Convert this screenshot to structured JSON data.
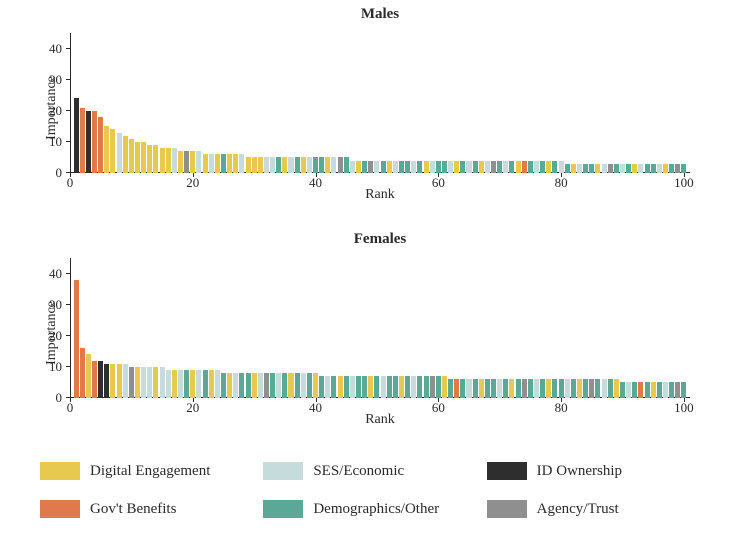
{
  "figure_width": 736,
  "figure_height": 535,
  "background_color": "#ffffff",
  "text_color": "#2a2a2a",
  "font_family": "Georgia, serif",
  "categories": {
    "digital": {
      "label": "Digital Engagement",
      "color": "#e7c94f"
    },
    "ses": {
      "label": "SES/Economic",
      "color": "#c6dbdb"
    },
    "id": {
      "label": "ID Ownership",
      "color": "#2e2e2e"
    },
    "gov": {
      "label": "Gov't Benefits",
      "color": "#e07a4c"
    },
    "demo": {
      "label": "Demographics/Other",
      "color": "#5aa997"
    },
    "agency": {
      "label": "Agency/Trust",
      "color": "#8f8f8f"
    }
  },
  "legend_order": [
    "digital",
    "ses",
    "id",
    "gov",
    "demo",
    "agency"
  ],
  "panels": [
    {
      "title": "Males",
      "xlabel": "Rank",
      "ylabel": "Importance",
      "ylim": [
        0,
        45
      ],
      "yticks": [
        0,
        10,
        20,
        30,
        40
      ],
      "xlim": [
        0,
        101
      ],
      "xticks": [
        0,
        20,
        40,
        60,
        80,
        100
      ],
      "bar_width": 0.82,
      "bars": [
        {
          "v": 24,
          "c": "id"
        },
        {
          "v": 21,
          "c": "gov"
        },
        {
          "v": 20,
          "c": "id"
        },
        {
          "v": 20,
          "c": "gov"
        },
        {
          "v": 18,
          "c": "gov"
        },
        {
          "v": 15,
          "c": "digital"
        },
        {
          "v": 14,
          "c": "digital"
        },
        {
          "v": 13,
          "c": "ses"
        },
        {
          "v": 12,
          "c": "digital"
        },
        {
          "v": 11,
          "c": "digital"
        },
        {
          "v": 10,
          "c": "digital"
        },
        {
          "v": 10,
          "c": "digital"
        },
        {
          "v": 9,
          "c": "digital"
        },
        {
          "v": 9,
          "c": "digital"
        },
        {
          "v": 8,
          "c": "digital"
        },
        {
          "v": 8,
          "c": "digital"
        },
        {
          "v": 8,
          "c": "ses"
        },
        {
          "v": 7,
          "c": "digital"
        },
        {
          "v": 7,
          "c": "agency"
        },
        {
          "v": 7,
          "c": "digital"
        },
        {
          "v": 7,
          "c": "ses"
        },
        {
          "v": 6,
          "c": "digital"
        },
        {
          "v": 6,
          "c": "ses"
        },
        {
          "v": 6,
          "c": "digital"
        },
        {
          "v": 6,
          "c": "demo"
        },
        {
          "v": 6,
          "c": "digital"
        },
        {
          "v": 6,
          "c": "digital"
        },
        {
          "v": 6,
          "c": "ses"
        },
        {
          "v": 5,
          "c": "digital"
        },
        {
          "v": 5,
          "c": "digital"
        },
        {
          "v": 5,
          "c": "digital"
        },
        {
          "v": 5,
          "c": "ses"
        },
        {
          "v": 5,
          "c": "ses"
        },
        {
          "v": 5,
          "c": "demo"
        },
        {
          "v": 5,
          "c": "digital"
        },
        {
          "v": 5,
          "c": "ses"
        },
        {
          "v": 5,
          "c": "demo"
        },
        {
          "v": 5,
          "c": "digital"
        },
        {
          "v": 5,
          "c": "ses"
        },
        {
          "v": 5,
          "c": "demo"
        },
        {
          "v": 5,
          "c": "demo"
        },
        {
          "v": 5,
          "c": "digital"
        },
        {
          "v": 5,
          "c": "ses"
        },
        {
          "v": 5,
          "c": "agency"
        },
        {
          "v": 5,
          "c": "demo"
        },
        {
          "v": 4,
          "c": "ses"
        },
        {
          "v": 4,
          "c": "digital"
        },
        {
          "v": 4,
          "c": "demo"
        },
        {
          "v": 4,
          "c": "agency"
        },
        {
          "v": 4,
          "c": "ses"
        },
        {
          "v": 4,
          "c": "demo"
        },
        {
          "v": 4,
          "c": "digital"
        },
        {
          "v": 4,
          "c": "ses"
        },
        {
          "v": 4,
          "c": "demo"
        },
        {
          "v": 4,
          "c": "demo"
        },
        {
          "v": 4,
          "c": "ses"
        },
        {
          "v": 4,
          "c": "demo"
        },
        {
          "v": 4,
          "c": "digital"
        },
        {
          "v": 4,
          "c": "ses"
        },
        {
          "v": 4,
          "c": "demo"
        },
        {
          "v": 4,
          "c": "demo"
        },
        {
          "v": 4,
          "c": "ses"
        },
        {
          "v": 4,
          "c": "digital"
        },
        {
          "v": 4,
          "c": "demo"
        },
        {
          "v": 4,
          "c": "ses"
        },
        {
          "v": 4,
          "c": "demo"
        },
        {
          "v": 4,
          "c": "digital"
        },
        {
          "v": 4,
          "c": "ses"
        },
        {
          "v": 4,
          "c": "agency"
        },
        {
          "v": 4,
          "c": "demo"
        },
        {
          "v": 4,
          "c": "ses"
        },
        {
          "v": 4,
          "c": "demo"
        },
        {
          "v": 4,
          "c": "digital"
        },
        {
          "v": 4,
          "c": "gov"
        },
        {
          "v": 4,
          "c": "demo"
        },
        {
          "v": 4,
          "c": "ses"
        },
        {
          "v": 4,
          "c": "demo"
        },
        {
          "v": 4,
          "c": "digital"
        },
        {
          "v": 4,
          "c": "demo"
        },
        {
          "v": 4,
          "c": "ses"
        },
        {
          "v": 3,
          "c": "demo"
        },
        {
          "v": 3,
          "c": "digital"
        },
        {
          "v": 3,
          "c": "ses"
        },
        {
          "v": 3,
          "c": "demo"
        },
        {
          "v": 3,
          "c": "demo"
        },
        {
          "v": 3,
          "c": "digital"
        },
        {
          "v": 3,
          "c": "ses"
        },
        {
          "v": 3,
          "c": "agency"
        },
        {
          "v": 3,
          "c": "demo"
        },
        {
          "v": 3,
          "c": "ses"
        },
        {
          "v": 3,
          "c": "demo"
        },
        {
          "v": 3,
          "c": "digital"
        },
        {
          "v": 3,
          "c": "ses"
        },
        {
          "v": 3,
          "c": "demo"
        },
        {
          "v": 3,
          "c": "demo"
        },
        {
          "v": 3,
          "c": "ses"
        },
        {
          "v": 3,
          "c": "digital"
        },
        {
          "v": 3,
          "c": "demo"
        },
        {
          "v": 3,
          "c": "agency"
        },
        {
          "v": 3,
          "c": "demo"
        }
      ]
    },
    {
      "title": "Females",
      "xlabel": "Rank",
      "ylabel": "Importance",
      "ylim": [
        0,
        45
      ],
      "yticks": [
        0,
        10,
        20,
        30,
        40
      ],
      "xlim": [
        0,
        101
      ],
      "xticks": [
        0,
        20,
        40,
        60,
        80,
        100
      ],
      "bar_width": 0.82,
      "bars": [
        {
          "v": 38,
          "c": "gov"
        },
        {
          "v": 16,
          "c": "gov"
        },
        {
          "v": 14,
          "c": "digital"
        },
        {
          "v": 12,
          "c": "gov"
        },
        {
          "v": 12,
          "c": "id"
        },
        {
          "v": 11,
          "c": "id"
        },
        {
          "v": 11,
          "c": "digital"
        },
        {
          "v": 11,
          "c": "digital"
        },
        {
          "v": 11,
          "c": "ses"
        },
        {
          "v": 10,
          "c": "agency"
        },
        {
          "v": 10,
          "c": "digital"
        },
        {
          "v": 10,
          "c": "ses"
        },
        {
          "v": 10,
          "c": "ses"
        },
        {
          "v": 10,
          "c": "digital"
        },
        {
          "v": 10,
          "c": "ses"
        },
        {
          "v": 9,
          "c": "ses"
        },
        {
          "v": 9,
          "c": "digital"
        },
        {
          "v": 9,
          "c": "ses"
        },
        {
          "v": 9,
          "c": "demo"
        },
        {
          "v": 9,
          "c": "digital"
        },
        {
          "v": 9,
          "c": "ses"
        },
        {
          "v": 9,
          "c": "demo"
        },
        {
          "v": 9,
          "c": "digital"
        },
        {
          "v": 9,
          "c": "ses"
        },
        {
          "v": 8,
          "c": "demo"
        },
        {
          "v": 8,
          "c": "digital"
        },
        {
          "v": 8,
          "c": "ses"
        },
        {
          "v": 8,
          "c": "demo"
        },
        {
          "v": 8,
          "c": "demo"
        },
        {
          "v": 8,
          "c": "digital"
        },
        {
          "v": 8,
          "c": "ses"
        },
        {
          "v": 8,
          "c": "agency"
        },
        {
          "v": 8,
          "c": "demo"
        },
        {
          "v": 8,
          "c": "ses"
        },
        {
          "v": 8,
          "c": "demo"
        },
        {
          "v": 8,
          "c": "digital"
        },
        {
          "v": 8,
          "c": "demo"
        },
        {
          "v": 8,
          "c": "ses"
        },
        {
          "v": 8,
          "c": "demo"
        },
        {
          "v": 8,
          "c": "digital"
        },
        {
          "v": 7,
          "c": "demo"
        },
        {
          "v": 7,
          "c": "ses"
        },
        {
          "v": 7,
          "c": "demo"
        },
        {
          "v": 7,
          "c": "digital"
        },
        {
          "v": 7,
          "c": "demo"
        },
        {
          "v": 7,
          "c": "ses"
        },
        {
          "v": 7,
          "c": "demo"
        },
        {
          "v": 7,
          "c": "demo"
        },
        {
          "v": 7,
          "c": "digital"
        },
        {
          "v": 7,
          "c": "demo"
        },
        {
          "v": 7,
          "c": "ses"
        },
        {
          "v": 7,
          "c": "demo"
        },
        {
          "v": 7,
          "c": "demo"
        },
        {
          "v": 7,
          "c": "digital"
        },
        {
          "v": 7,
          "c": "demo"
        },
        {
          "v": 7,
          "c": "ses"
        },
        {
          "v": 7,
          "c": "demo"
        },
        {
          "v": 7,
          "c": "demo"
        },
        {
          "v": 7,
          "c": "agency"
        },
        {
          "v": 7,
          "c": "demo"
        },
        {
          "v": 7,
          "c": "digital"
        },
        {
          "v": 6,
          "c": "demo"
        },
        {
          "v": 6,
          "c": "gov"
        },
        {
          "v": 6,
          "c": "demo"
        },
        {
          "v": 6,
          "c": "ses"
        },
        {
          "v": 6,
          "c": "demo"
        },
        {
          "v": 6,
          "c": "digital"
        },
        {
          "v": 6,
          "c": "demo"
        },
        {
          "v": 6,
          "c": "demo"
        },
        {
          "v": 6,
          "c": "ses"
        },
        {
          "v": 6,
          "c": "demo"
        },
        {
          "v": 6,
          "c": "digital"
        },
        {
          "v": 6,
          "c": "demo"
        },
        {
          "v": 6,
          "c": "agency"
        },
        {
          "v": 6,
          "c": "demo"
        },
        {
          "v": 6,
          "c": "ses"
        },
        {
          "v": 6,
          "c": "demo"
        },
        {
          "v": 6,
          "c": "digital"
        },
        {
          "v": 6,
          "c": "demo"
        },
        {
          "v": 6,
          "c": "demo"
        },
        {
          "v": 6,
          "c": "ses"
        },
        {
          "v": 6,
          "c": "demo"
        },
        {
          "v": 6,
          "c": "digital"
        },
        {
          "v": 6,
          "c": "demo"
        },
        {
          "v": 6,
          "c": "agency"
        },
        {
          "v": 6,
          "c": "demo"
        },
        {
          "v": 6,
          "c": "ses"
        },
        {
          "v": 6,
          "c": "demo"
        },
        {
          "v": 6,
          "c": "digital"
        },
        {
          "v": 5,
          "c": "demo"
        },
        {
          "v": 5,
          "c": "ses"
        },
        {
          "v": 5,
          "c": "demo"
        },
        {
          "v": 5,
          "c": "gov"
        },
        {
          "v": 5,
          "c": "demo"
        },
        {
          "v": 5,
          "c": "digital"
        },
        {
          "v": 5,
          "c": "demo"
        },
        {
          "v": 5,
          "c": "ses"
        },
        {
          "v": 5,
          "c": "demo"
        },
        {
          "v": 5,
          "c": "agency"
        },
        {
          "v": 5,
          "c": "demo"
        }
      ]
    }
  ]
}
